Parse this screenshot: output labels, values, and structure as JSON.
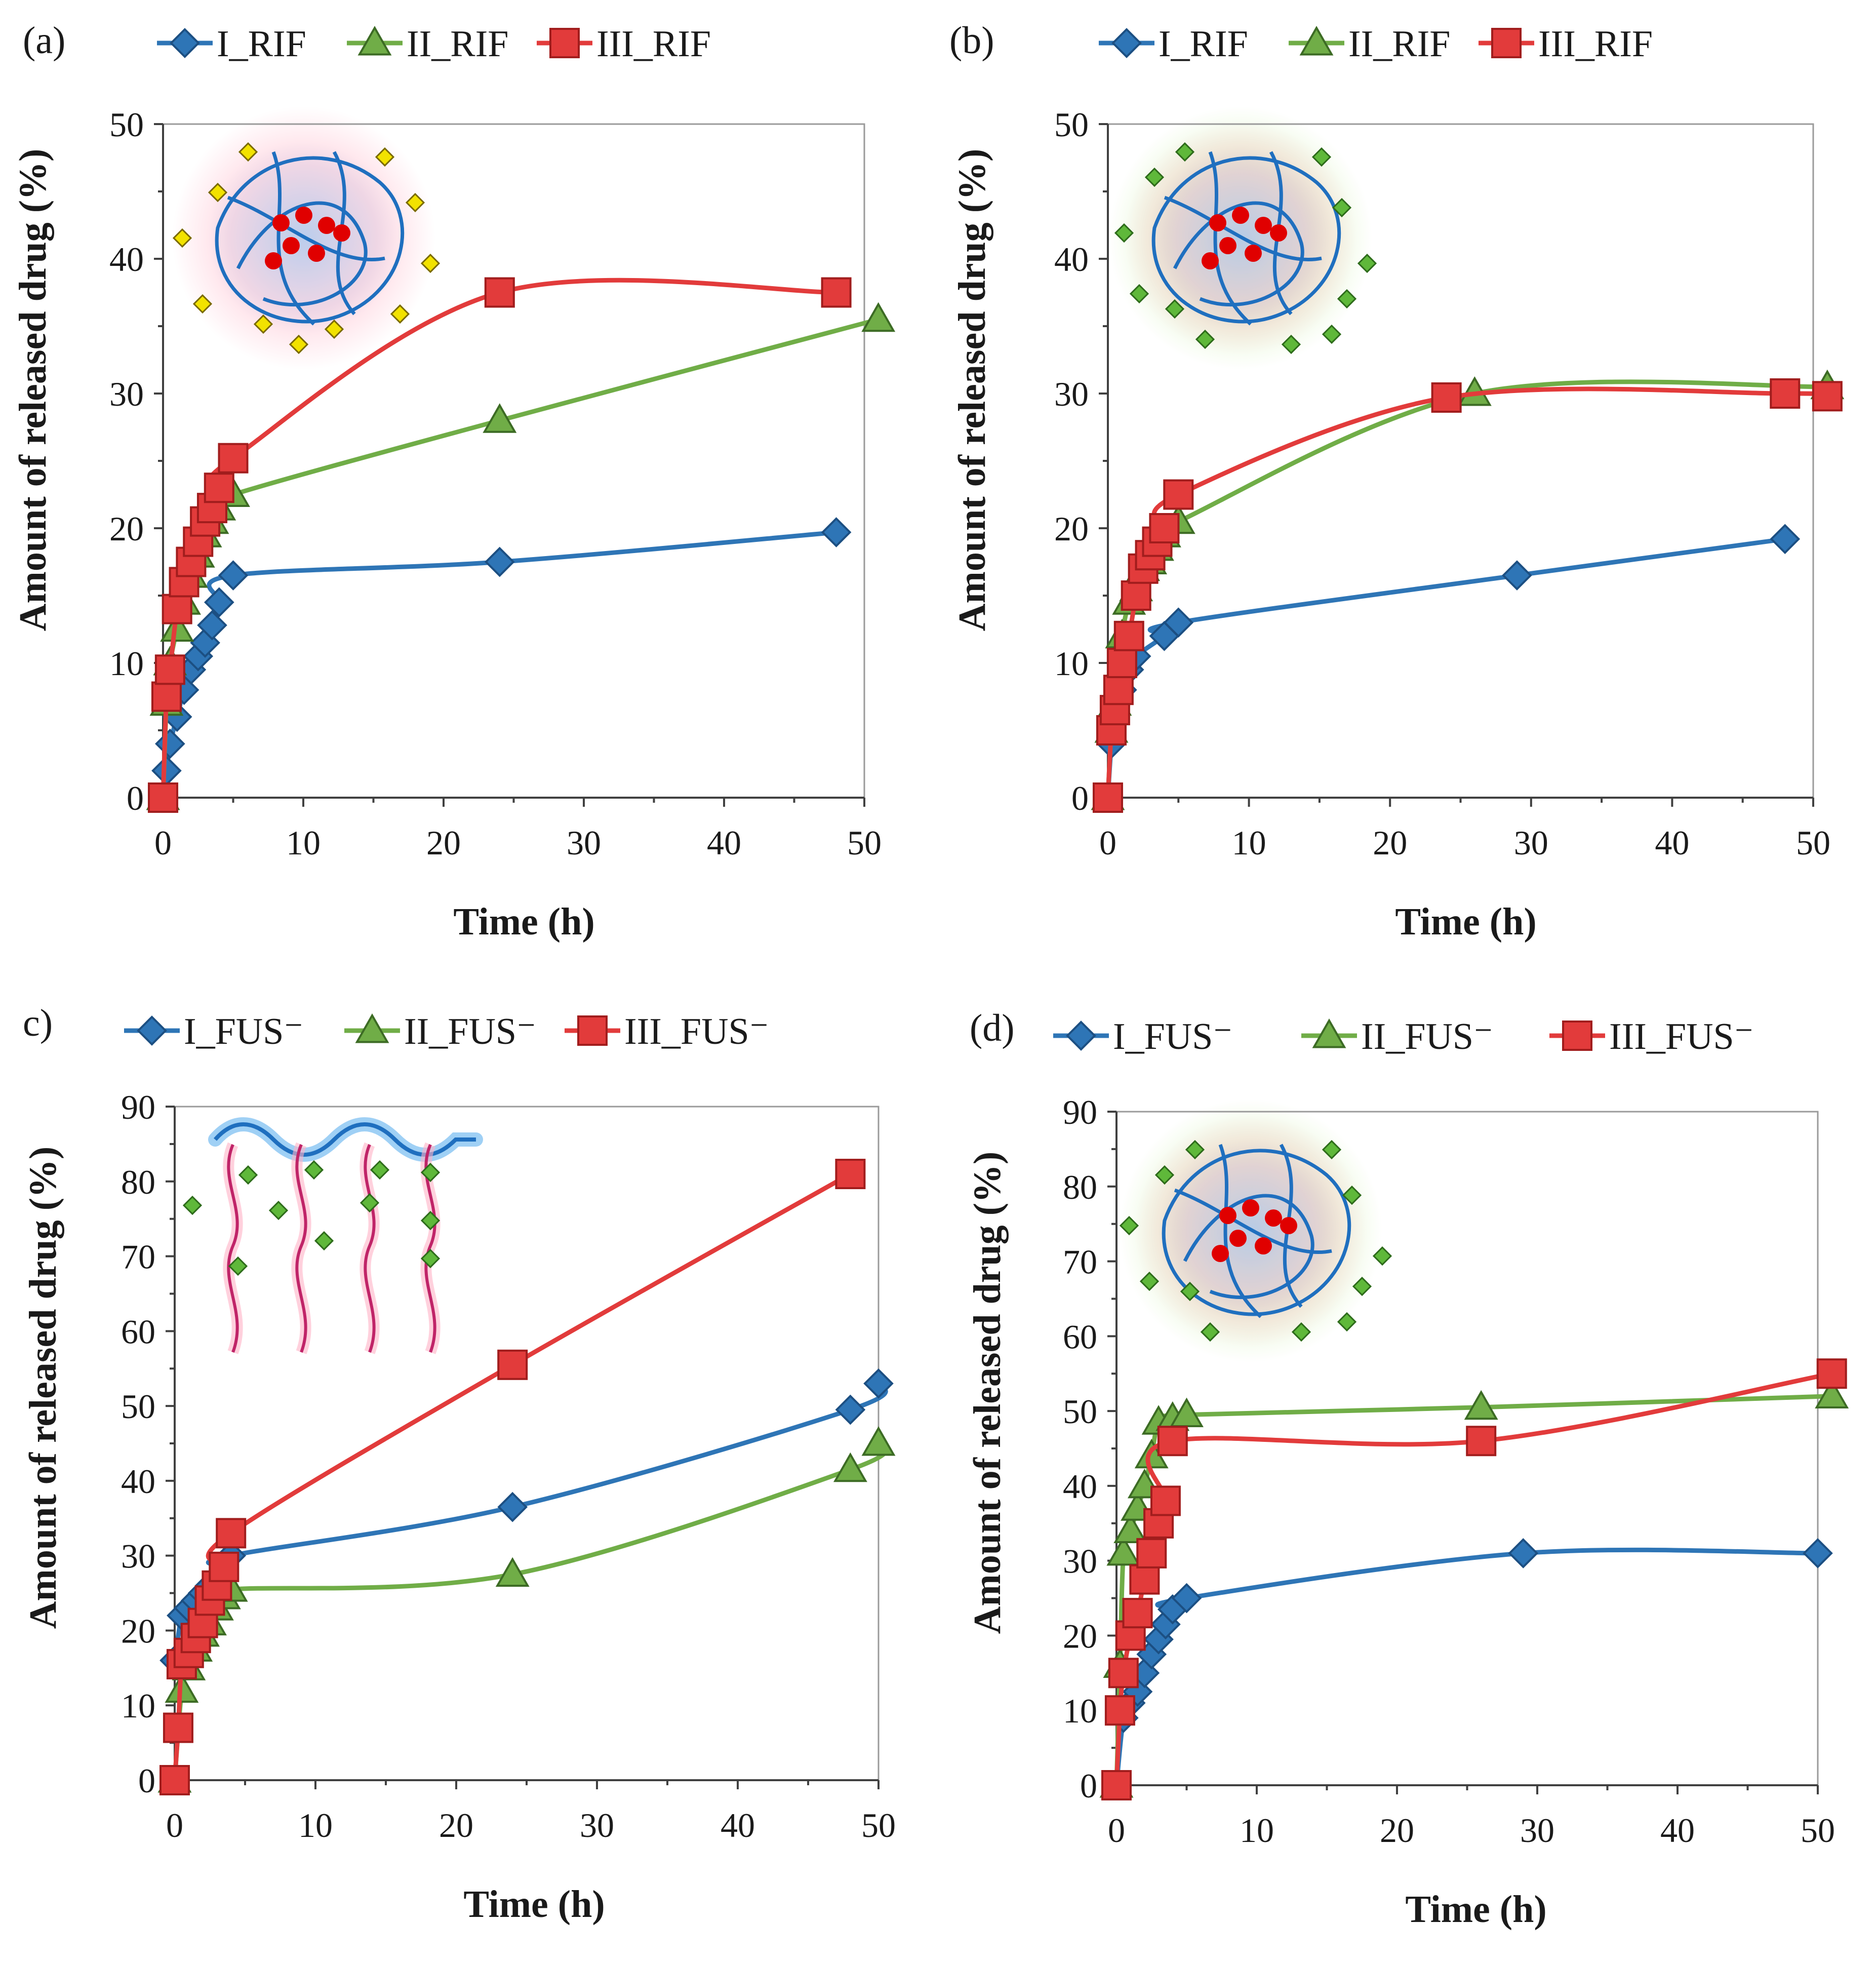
{
  "chart_data": [
    {
      "type": "line",
      "panel_label": "(a)",
      "xlabel": "Time (h)",
      "ylabel": "Amount of released drug (%)",
      "xlim": [
        0,
        50
      ],
      "ylim": [
        0,
        50
      ],
      "xticks": [
        0,
        10,
        20,
        30,
        40,
        50
      ],
      "yticks": [
        0,
        10,
        20,
        30,
        40,
        50
      ],
      "legend_position": "top",
      "inset": "core-shell nanoparticle loaded with drug (yellow) in shell and red core",
      "series": [
        {
          "name": "I_RIF",
          "color": "#2e75b6",
          "marker": "diamond",
          "x": [
            0,
            0.25,
            0.5,
            1,
            1.5,
            2,
            2.5,
            3,
            3.5,
            4,
            5,
            24,
            48
          ],
          "y": [
            0,
            2,
            4,
            6,
            8,
            9.5,
            10.5,
            11.5,
            12.8,
            14.5,
            16.5,
            17.5,
            19.7
          ]
        },
        {
          "name": "II_RIF",
          "color": "#70ad47",
          "marker": "triangle",
          "x": [
            0,
            0.25,
            0.5,
            1,
            1.5,
            2,
            2.5,
            3,
            3.5,
            4,
            5,
            24,
            51
          ],
          "y": [
            0,
            7,
            10,
            12.5,
            14.5,
            16.5,
            18,
            19.5,
            20.5,
            21.5,
            22.5,
            28,
            35.5
          ]
        },
        {
          "name": "III_RIF",
          "color": "#e23b3b",
          "marker": "square",
          "x": [
            0,
            0.25,
            0.5,
            1,
            1.5,
            2,
            2.5,
            3,
            3.5,
            4,
            5,
            24,
            48
          ],
          "y": [
            0,
            7.5,
            9.5,
            14,
            16,
            17.5,
            19,
            20.5,
            21.5,
            23,
            25.2,
            37.5,
            37.5
          ]
        }
      ]
    },
    {
      "type": "line",
      "panel_label": "(b)",
      "xlabel": "Time (h)",
      "ylabel": "Amount of released drug (%)",
      "xlim": [
        0,
        50
      ],
      "ylim": [
        0,
        50
      ],
      "xticks": [
        0,
        10,
        20,
        30,
        40,
        50
      ],
      "yticks": [
        0,
        10,
        20,
        30,
        40,
        50
      ],
      "legend_position": "top",
      "inset": "core-shell nanoparticle loaded with green drug in shell and red core",
      "series": [
        {
          "name": "I_RIF",
          "color": "#2e75b6",
          "marker": "diamond",
          "x": [
            0,
            0.25,
            0.5,
            1,
            1.5,
            2,
            4,
            5,
            29,
            48
          ],
          "y": [
            0,
            4,
            6,
            8,
            9.5,
            10.5,
            12,
            13,
            16.5,
            19.2
          ]
        },
        {
          "name": "II_RIF",
          "color": "#70ad47",
          "marker": "triangle",
          "x": [
            0,
            0.25,
            0.5,
            1,
            1.5,
            2,
            2.5,
            3,
            3.5,
            4,
            5,
            26,
            51
          ],
          "y": [
            0,
            5,
            7,
            12,
            14.5,
            15.5,
            17,
            17.5,
            18.5,
            19.5,
            20.5,
            30,
            30.5
          ]
        },
        {
          "name": "III_RIF",
          "color": "#e23b3b",
          "marker": "square",
          "x": [
            0,
            0.25,
            0.5,
            0.75,
            1,
            1.5,
            2,
            2.5,
            3,
            3.5,
            4,
            5,
            24,
            48,
            51
          ],
          "y": [
            0,
            5,
            6.5,
            8,
            10,
            12,
            15,
            17,
            18,
            19,
            20,
            22.5,
            29.7,
            30,
            29.8
          ]
        }
      ]
    },
    {
      "type": "line",
      "panel_label": "c)",
      "xlabel": "Time (h)",
      "ylabel": "Amount of released drug (%)",
      "xlim": [
        0,
        50
      ],
      "ylim": [
        0,
        90
      ],
      "xticks": [
        0,
        10,
        20,
        30,
        40,
        50
      ],
      "yticks": [
        0,
        10,
        20,
        30,
        40,
        50,
        60,
        70,
        80,
        90
      ],
      "legend_position": "top",
      "inset": "brush-like copolymer chains with green drug molecules",
      "series": [
        {
          "name": "I_FUS⁻",
          "color": "#2e75b6",
          "marker": "diamond",
          "x": [
            0,
            0.5,
            1,
            1.5,
            2,
            2.5,
            3,
            3.5,
            4,
            24,
            48,
            50
          ],
          "y": [
            16,
            22,
            23,
            24,
            25,
            26,
            27,
            28.5,
            30,
            36.5,
            49.5,
            53
          ]
        },
        {
          "name": "II_FUS⁻",
          "color": "#70ad47",
          "marker": "triangle",
          "x": [
            0,
            0.5,
            1,
            1.5,
            2,
            2.5,
            3,
            3.5,
            4,
            24,
            48,
            50
          ],
          "y": [
            0,
            12,
            15,
            17.5,
            19.5,
            21,
            23,
            24.5,
            25.5,
            27.5,
            41.5,
            45
          ]
        },
        {
          "name": "III_FUS⁻",
          "color": "#e23b3b",
          "marker": "square",
          "x": [
            0,
            0.25,
            0.5,
            1,
            1.5,
            2,
            2.5,
            3,
            3.5,
            4,
            24,
            48
          ],
          "y": [
            0,
            7,
            15.5,
            17,
            19,
            21,
            24,
            26,
            28.5,
            33,
            55.5,
            81
          ]
        }
      ]
    },
    {
      "type": "line",
      "panel_label": "(d)",
      "xlabel": "Time (h)",
      "ylabel": "Amount of released drug (%)",
      "xlim": [
        0,
        50
      ],
      "ylim": [
        0,
        90
      ],
      "xticks": [
        0,
        10,
        20,
        30,
        40,
        50
      ],
      "yticks": [
        0,
        10,
        20,
        30,
        40,
        50,
        60,
        70,
        80,
        90
      ],
      "legend_position": "top",
      "inset": "core-shell nanoparticle loaded with green drug in shell and red core",
      "series": [
        {
          "name": "I_FUS⁻",
          "color": "#2e75b6",
          "marker": "diamond",
          "x": [
            0,
            0.5,
            1,
            1.5,
            2,
            2.5,
            3,
            3.5,
            4,
            5,
            29,
            50
          ],
          "y": [
            0,
            9,
            11,
            12.5,
            15,
            17.5,
            19.5,
            21.5,
            23.5,
            25,
            31,
            31
          ]
        },
        {
          "name": "II_FUS⁻",
          "color": "#70ad47",
          "marker": "triangle",
          "x": [
            0,
            0.25,
            0.5,
            1,
            1.5,
            2,
            2.5,
            3,
            4,
            5,
            26,
            51
          ],
          "y": [
            0,
            16,
            31,
            34,
            37,
            40,
            44,
            48.5,
            49,
            49.5,
            50.5,
            52
          ]
        },
        {
          "name": "III_FUS⁻",
          "color": "#e23b3b",
          "marker": "square",
          "x": [
            0,
            0.25,
            0.5,
            1,
            1.5,
            2,
            2.5,
            3,
            3.5,
            4,
            26,
            51
          ],
          "y": [
            0,
            10,
            15,
            20,
            23,
            27.5,
            31,
            35,
            38,
            46,
            46,
            55
          ]
        }
      ]
    }
  ]
}
